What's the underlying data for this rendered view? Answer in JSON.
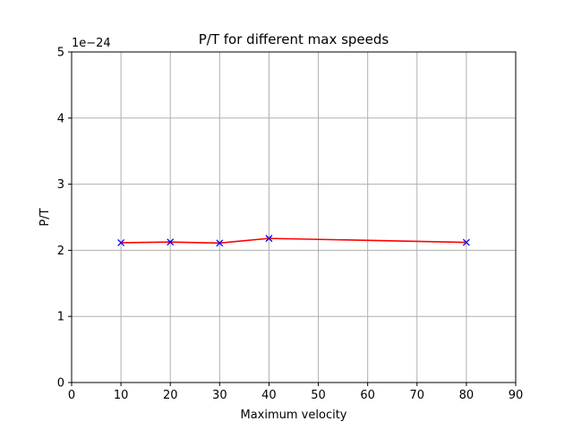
{
  "chart_data": {
    "type": "line",
    "title": "P/T for different max speeds",
    "xlabel": "Maximum velocity",
    "ylabel": "P/T",
    "y_offset_label": "1e−24",
    "y_scale_exponent": -24,
    "xlim": [
      0,
      90
    ],
    "ylim": [
      0,
      5
    ],
    "x_ticks": [
      0,
      10,
      20,
      30,
      40,
      50,
      60,
      70,
      80,
      90
    ],
    "y_ticks": [
      0,
      1,
      2,
      3,
      4,
      5
    ],
    "grid": true,
    "series": [
      {
        "x": [
          10,
          20,
          30,
          40,
          80
        ],
        "y": [
          2.115,
          2.125,
          2.11,
          2.18,
          2.12
        ],
        "line_color": "#ff0000",
        "marker": "x",
        "marker_color": "#0000ff"
      }
    ]
  }
}
